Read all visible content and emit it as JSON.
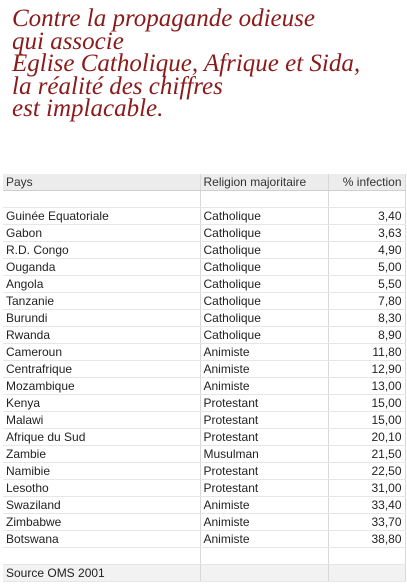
{
  "headline": {
    "lines": [
      "Contre la propagande odieuse",
      "qui associe",
      "Eglise Catholique, Afrique et Sida,",
      "la réalité des chiffres",
      "est implacable."
    ]
  },
  "table": {
    "headers": [
      "Pays",
      "Religion majoritaire",
      "% infection"
    ],
    "rows": [
      {
        "pays": "Guinée Equatoriale",
        "religion": "Catholique",
        "infection": "3,40"
      },
      {
        "pays": "Gabon",
        "religion": "Catholique",
        "infection": "3,63"
      },
      {
        "pays": "R.D. Congo",
        "religion": "Catholique",
        "infection": "4,90"
      },
      {
        "pays": "Ouganda",
        "religion": "Catholique",
        "infection": "5,00"
      },
      {
        "pays": "Angola",
        "religion": "Catholique",
        "infection": "5,50"
      },
      {
        "pays": "Tanzanie",
        "religion": "Catholique",
        "infection": "7,80"
      },
      {
        "pays": "Burundi",
        "religion": "Catholique",
        "infection": "8,30"
      },
      {
        "pays": "Rwanda",
        "religion": "Catholique",
        "infection": "8,90"
      },
      {
        "pays": "Cameroun",
        "religion": "Animiste",
        "infection": "11,80"
      },
      {
        "pays": "Centrafrique",
        "religion": "Animiste",
        "infection": "12,90"
      },
      {
        "pays": "Mozambique",
        "religion": "Animiste",
        "infection": "13,00"
      },
      {
        "pays": "Kenya",
        "religion": "Protestant",
        "infection": "15,00"
      },
      {
        "pays": "Malawi",
        "religion": "Protestant",
        "infection": "15,00"
      },
      {
        "pays": "Afrique du Sud",
        "religion": "Protestant",
        "infection": "20,10"
      },
      {
        "pays": "Zambie",
        "religion": "Musulman",
        "infection": "21,50"
      },
      {
        "pays": "Namibie",
        "religion": "Protestant",
        "infection": "22,50"
      },
      {
        "pays": "Lesotho",
        "religion": "Protestant",
        "infection": "31,00"
      },
      {
        "pays": "Swaziland",
        "religion": "Animiste",
        "infection": "33,40"
      },
      {
        "pays": "Zimbabwe",
        "religion": "Animiste",
        "infection": "33,70"
      },
      {
        "pays": "Botswana",
        "religion": "Animiste",
        "infection": "38,80"
      }
    ],
    "source": "Source OMS 2001"
  }
}
